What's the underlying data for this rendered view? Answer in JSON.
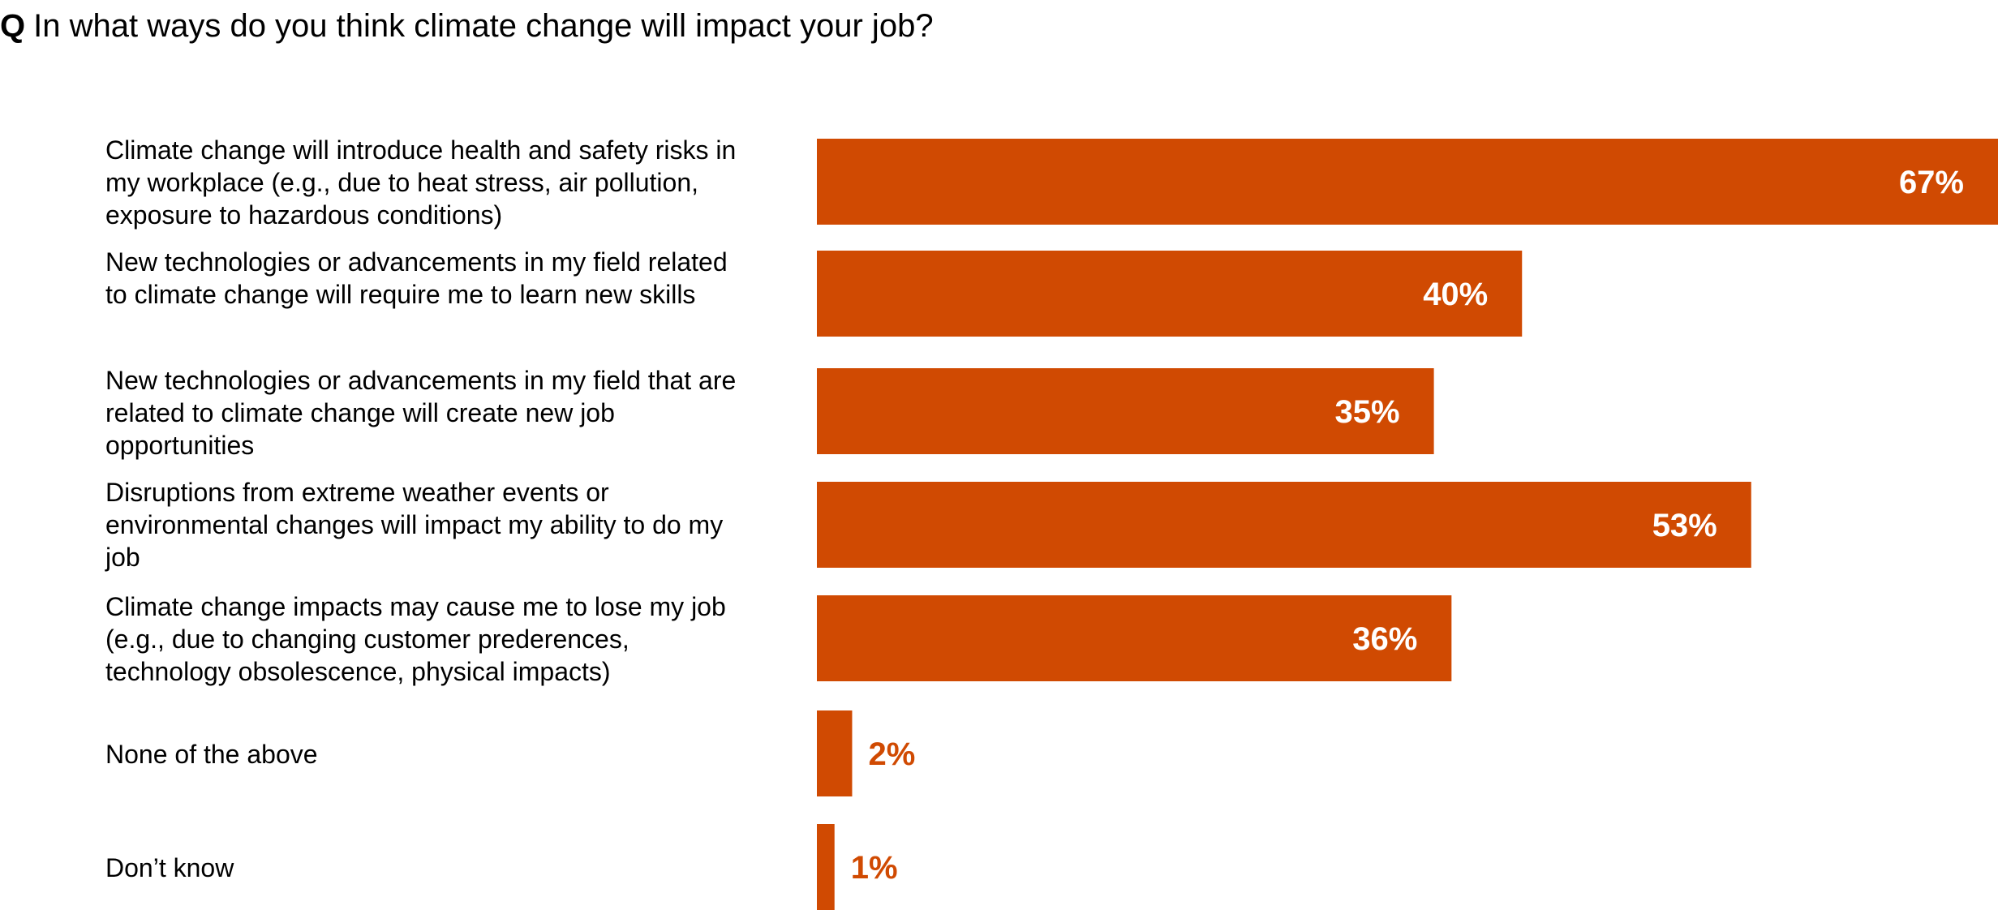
{
  "question": {
    "marker": "Q",
    "text": "In what ways do you think climate change will impact your job?"
  },
  "colors": {
    "accent": "#d04a02",
    "text": "#000000",
    "bar_label_inside": "#ffffff"
  },
  "chart_data": {
    "type": "bar",
    "orientation": "horizontal",
    "categories": [
      "Climate change will introduce health and safety risks in my workplace (e.g., due to heat stress, air pollution, exposure to hazardous conditions)",
      "New technologies or advancements in my field related to climate change will require me to learn new skills",
      "New technologies or advancements in my field that are related to climate change will create new job opportunities",
      "Disruptions from extreme weather events or environmental changes will impact my ability to do my job",
      "Climate change impacts may cause me to lose my job (e.g., due to changing customer prederences, technology obsolescence, physical impacts)",
      "None of the above",
      "Don’t know"
    ],
    "values": [
      67,
      40,
      35,
      53,
      36,
      2,
      1
    ],
    "value_labels": [
      "67%",
      "40%",
      "35%",
      "53%",
      "36%",
      "2%",
      "1%"
    ],
    "xlim": [
      0,
      67
    ],
    "grid": false,
    "legend": "none",
    "title": "",
    "xlabel": "",
    "ylabel": ""
  }
}
